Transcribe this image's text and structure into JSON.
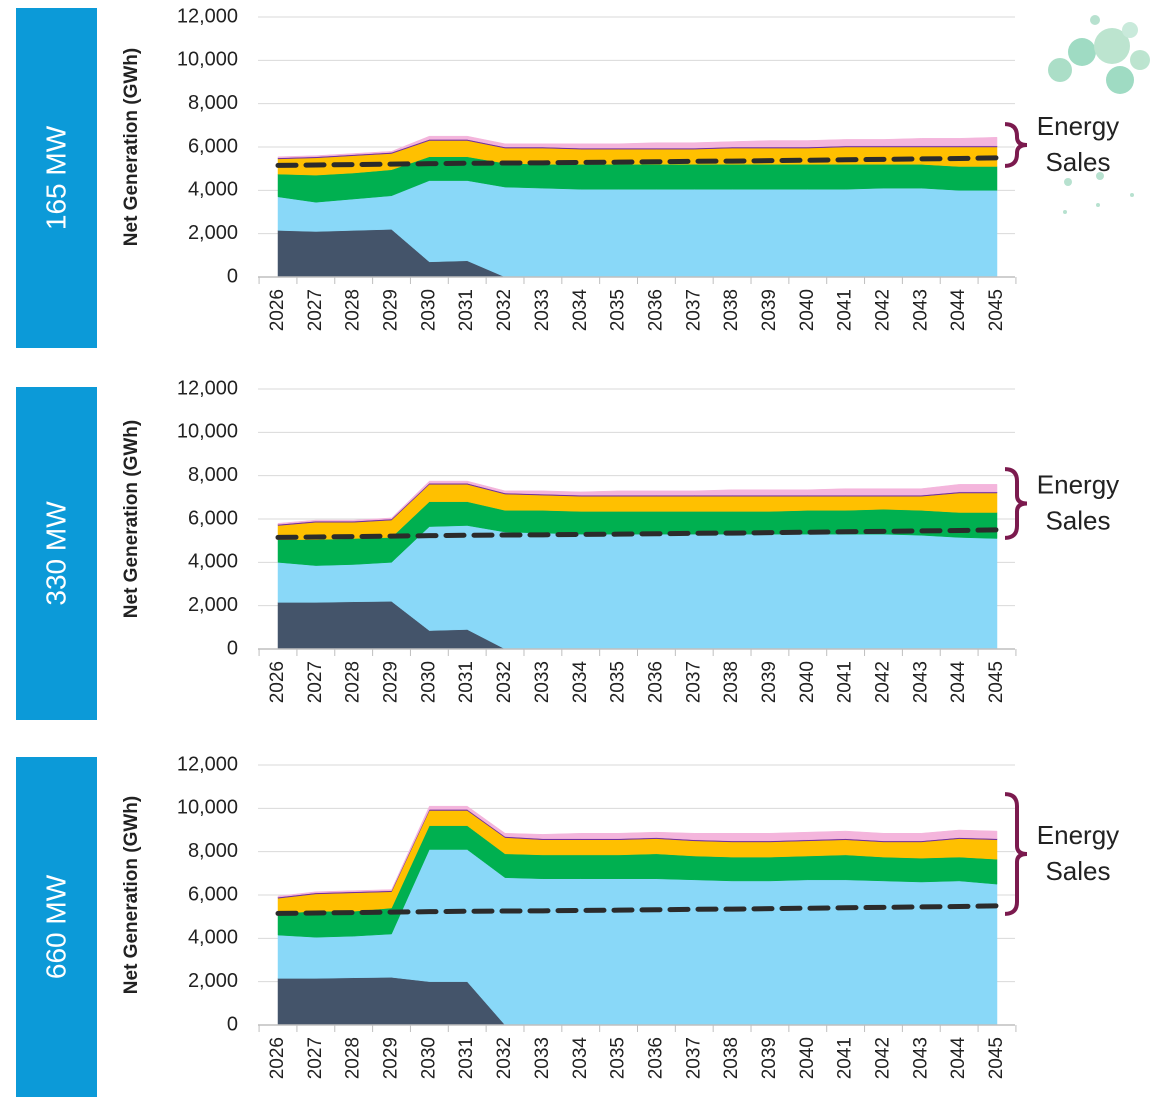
{
  "chart_data": [
    {
      "type": "area",
      "panel_label": "165 MW",
      "y_label": "Net Generation (GWh)",
      "annotation_lines": [
        "Energy",
        "Sales"
      ],
      "categories": [
        "2026",
        "2027",
        "2028",
        "2029",
        "2030",
        "2031",
        "2032",
        "2033",
        "2034",
        "2035",
        "2036",
        "2037",
        "2038",
        "2039",
        "2040",
        "2041",
        "2042",
        "2043",
        "2044",
        "2045"
      ],
      "ylim": [
        0,
        12000
      ],
      "yticks": [
        0,
        {
          "value": 2000,
          "label": "2,000"
        },
        {
          "value": 4000,
          "label": "4,000"
        },
        {
          "value": 6000,
          "label": "6,000"
        },
        {
          "value": 8000,
          "label": "8,000"
        },
        {
          "value": 10000,
          "label": "10,000"
        },
        {
          "value": 12000,
          "label": "12,000"
        }
      ],
      "grid": true,
      "series": [
        {
          "color": "#44546a",
          "values": [
            2150,
            2100,
            2150,
            2200,
            700,
            750,
            0,
            0,
            0,
            0,
            0,
            0,
            0,
            0,
            0,
            0,
            0,
            0,
            0,
            0
          ]
        },
        {
          "color": "#89d8f8",
          "values": [
            1550,
            1350,
            1450,
            1550,
            3750,
            3700,
            4150,
            4100,
            4050,
            4050,
            4050,
            4050,
            4050,
            4050,
            4050,
            4050,
            4100,
            4100,
            4000,
            4000
          ]
        },
        {
          "color": "#00b050",
          "values": [
            1050,
            1250,
            1200,
            1200,
            1100,
            1100,
            1100,
            1100,
            1150,
            1150,
            1150,
            1150,
            1150,
            1150,
            1150,
            1150,
            1100,
            1100,
            1100,
            1100
          ]
        },
        {
          "color": "#ffc000",
          "values": [
            700,
            800,
            800,
            750,
            750,
            750,
            700,
            750,
            700,
            700,
            700,
            700,
            750,
            750,
            750,
            800,
            800,
            800,
            900,
            900
          ]
        },
        {
          "color": "#7030a0",
          "values": [
            50,
            50,
            50,
            50,
            50,
            50,
            50,
            50,
            50,
            50,
            50,
            50,
            50,
            50,
            50,
            50,
            50,
            50,
            50,
            50
          ]
        },
        {
          "color": "#f4b5dc",
          "values": [
            50,
            50,
            50,
            50,
            150,
            150,
            150,
            150,
            200,
            200,
            250,
            250,
            250,
            300,
            300,
            300,
            300,
            350,
            350,
            400
          ]
        }
      ],
      "sales": {
        "color": "#2b2b2b",
        "dashed": true,
        "values": [
          5150,
          5170,
          5190,
          5210,
          5230,
          5250,
          5260,
          5270,
          5290,
          5300,
          5320,
          5340,
          5350,
          5370,
          5390,
          5410,
          5430,
          5450,
          5470,
          5500
        ]
      }
    },
    {
      "type": "area",
      "panel_label": "330 MW",
      "y_label": "Net Generation (GWh)",
      "annotation_lines": [
        "Energy",
        "Sales"
      ],
      "categories": [
        "2026",
        "2027",
        "2028",
        "2029",
        "2030",
        "2031",
        "2032",
        "2033",
        "2034",
        "2035",
        "2036",
        "2037",
        "2038",
        "2039",
        "2040",
        "2041",
        "2042",
        "2043",
        "2044",
        "2045"
      ],
      "ylim": [
        0,
        12000
      ],
      "yticks": [
        0,
        {
          "value": 2000,
          "label": "2,000"
        },
        {
          "value": 4000,
          "label": "4,000"
        },
        {
          "value": 6000,
          "label": "6,000"
        },
        {
          "value": 8000,
          "label": "8,000"
        },
        {
          "value": 10000,
          "label": "10,000"
        },
        {
          "value": 12000,
          "label": "12,000"
        }
      ],
      "grid": true,
      "series": [
        {
          "color": "#44546a",
          "values": [
            2150,
            2150,
            2180,
            2200,
            850,
            900,
            0,
            0,
            0,
            0,
            0,
            0,
            0,
            0,
            0,
            0,
            0,
            0,
            0,
            0
          ]
        },
        {
          "color": "#89d8f8",
          "values": [
            1850,
            1700,
            1720,
            1800,
            4800,
            4800,
            5400,
            5350,
            5300,
            5300,
            5300,
            5300,
            5300,
            5300,
            5300,
            5300,
            5300,
            5250,
            5150,
            5100
          ]
        },
        {
          "color": "#00b050",
          "values": [
            1050,
            1200,
            1200,
            1150,
            1150,
            1100,
            1000,
            1050,
            1050,
            1050,
            1050,
            1050,
            1050,
            1050,
            1100,
            1100,
            1150,
            1150,
            1150,
            1200
          ]
        },
        {
          "color": "#ffc000",
          "values": [
            650,
            800,
            750,
            800,
            800,
            800,
            750,
            700,
            700,
            700,
            700,
            700,
            700,
            700,
            650,
            650,
            600,
            650,
            900,
            900
          ]
        },
        {
          "color": "#7030a0",
          "values": [
            50,
            50,
            50,
            50,
            50,
            50,
            50,
            50,
            50,
            50,
            50,
            50,
            50,
            50,
            50,
            50,
            50,
            50,
            50,
            50
          ]
        },
        {
          "color": "#f4b5dc",
          "values": [
            50,
            50,
            50,
            50,
            100,
            100,
            100,
            150,
            150,
            200,
            200,
            200,
            250,
            250,
            250,
            300,
            300,
            300,
            350,
            350
          ]
        }
      ],
      "sales": {
        "color": "#2b2b2b",
        "dashed": true,
        "values": [
          5150,
          5170,
          5190,
          5210,
          5230,
          5250,
          5260,
          5270,
          5290,
          5300,
          5320,
          5340,
          5350,
          5370,
          5390,
          5410,
          5430,
          5450,
          5470,
          5500
        ]
      }
    },
    {
      "type": "area",
      "panel_label": "660 MW",
      "y_label": "Net Generation (GWh)",
      "annotation_lines": [
        "Energy",
        "Sales"
      ],
      "categories": [
        "2026",
        "2027",
        "2028",
        "2029",
        "2030",
        "2031",
        "2032",
        "2033",
        "2034",
        "2035",
        "2036",
        "2037",
        "2038",
        "2039",
        "2040",
        "2041",
        "2042",
        "2043",
        "2044",
        "2045"
      ],
      "ylim": [
        0,
        12000
      ],
      "yticks": [
        0,
        {
          "value": 2000,
          "label": "2,000"
        },
        {
          "value": 4000,
          "label": "4,000"
        },
        {
          "value": 6000,
          "label": "6,000"
        },
        {
          "value": 8000,
          "label": "8,000"
        },
        {
          "value": 10000,
          "label": "10,000"
        },
        {
          "value": 12000,
          "label": "12,000"
        }
      ],
      "grid": true,
      "series": [
        {
          "color": "#44546a",
          "values": [
            2150,
            2150,
            2180,
            2200,
            2000,
            2000,
            0,
            0,
            0,
            0,
            0,
            0,
            0,
            0,
            0,
            0,
            0,
            0,
            0,
            0
          ]
        },
        {
          "color": "#89d8f8",
          "values": [
            2000,
            1900,
            1920,
            2000,
            6100,
            6100,
            6800,
            6750,
            6750,
            6750,
            6750,
            6700,
            6650,
            6650,
            6700,
            6700,
            6650,
            6600,
            6650,
            6500
          ]
        },
        {
          "color": "#00b050",
          "values": [
            1000,
            1200,
            1150,
            1200,
            1100,
            1100,
            1100,
            1100,
            1100,
            1100,
            1150,
            1100,
            1100,
            1100,
            1100,
            1150,
            1100,
            1100,
            1100,
            1150
          ]
        },
        {
          "color": "#ffc000",
          "values": [
            700,
            800,
            850,
            750,
            700,
            700,
            750,
            700,
            700,
            700,
            700,
            700,
            700,
            700,
            700,
            700,
            700,
            750,
            850,
            900
          ]
        },
        {
          "color": "#7030a0",
          "values": [
            50,
            50,
            50,
            50,
            50,
            50,
            50,
            50,
            50,
            50,
            50,
            50,
            50,
            50,
            50,
            50,
            50,
            50,
            50,
            50
          ]
        },
        {
          "color": "#f4b5dc",
          "values": [
            50,
            50,
            50,
            50,
            150,
            150,
            150,
            200,
            250,
            250,
            250,
            300,
            350,
            350,
            350,
            350,
            350,
            350,
            350,
            350
          ]
        }
      ],
      "sales": {
        "color": "#2b2b2b",
        "dashed": true,
        "values": [
          5150,
          5170,
          5190,
          5210,
          5230,
          5250,
          5260,
          5270,
          5290,
          5300,
          5320,
          5340,
          5350,
          5370,
          5390,
          5410,
          5430,
          5450,
          5470,
          5500
        ]
      }
    }
  ]
}
